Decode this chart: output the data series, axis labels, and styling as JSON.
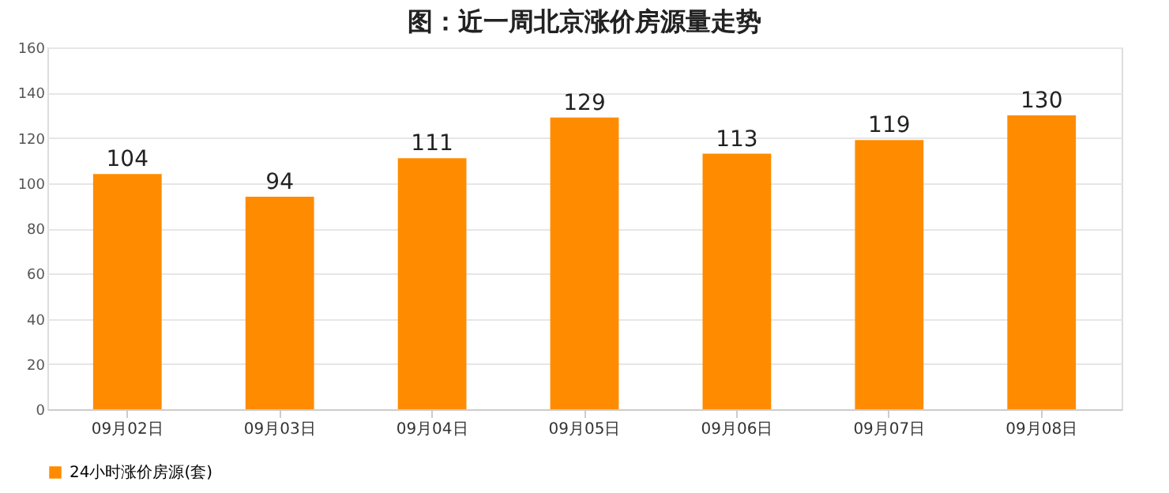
{
  "chart_data": {
    "type": "bar",
    "title": "图：近一周北京涨价房源量走势",
    "categories": [
      "09月02日",
      "09月03日",
      "09月04日",
      "09月05日",
      "09月06日",
      "09月07日",
      "09月08日"
    ],
    "series": [
      {
        "name": "24小时涨价房源(套)",
        "color": "#ff8c00",
        "values": [
          104,
          94,
          111,
          129,
          113,
          119,
          130
        ]
      }
    ],
    "ylim": [
      0,
      160
    ],
    "yticks": [
      0,
      20,
      40,
      60,
      80,
      100,
      120,
      140,
      160
    ],
    "grid": "y",
    "legend": "bottom",
    "data_labels": true
  }
}
